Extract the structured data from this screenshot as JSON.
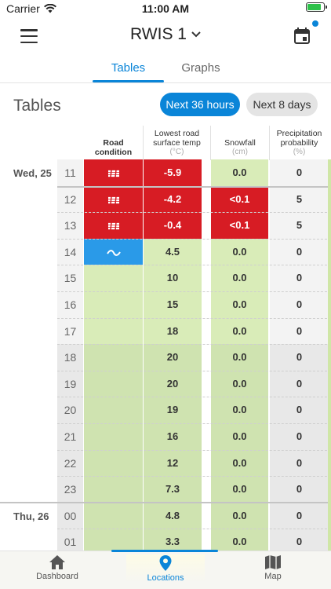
{
  "status_bar": {
    "carrier": "Carrier",
    "time": "11:00 AM"
  },
  "header": {
    "station": "RWIS 1"
  },
  "tabs": [
    {
      "label": "Tables"
    },
    {
      "label": "Graphs"
    }
  ],
  "section": {
    "title": "Tables"
  },
  "range_chips": [
    {
      "label": "Next 36 hours"
    },
    {
      "label": "Next 8 days"
    }
  ],
  "columns": {
    "road": {
      "label": "Road condition"
    },
    "temp": {
      "label": "Lowest road surface temp",
      "unit": "(°C)"
    },
    "snow": {
      "label": "Snowfall",
      "unit": "(cm)"
    },
    "precip": {
      "label": "Precipitation probability",
      "unit": "(%)"
    }
  },
  "days": [
    {
      "label": "Wed, 25"
    },
    {
      "label": "Thu, 26"
    }
  ],
  "rows": [
    {
      "hour": "11",
      "road": "frost-icon",
      "temp": "-5.9",
      "snow": "0.0",
      "precip": "0"
    },
    {
      "hour": "12",
      "road": "frost-icon",
      "temp": "-4.2",
      "snow": "<0.1",
      "precip": "5"
    },
    {
      "hour": "13",
      "road": "frost-icon",
      "temp": "-0.4",
      "snow": "<0.1",
      "precip": "5"
    },
    {
      "hour": "14",
      "road": "wet-icon",
      "temp": "4.5",
      "snow": "0.0",
      "precip": "0"
    },
    {
      "hour": "15",
      "road": "",
      "temp": "10",
      "snow": "0.0",
      "precip": "0"
    },
    {
      "hour": "16",
      "road": "",
      "temp": "15",
      "snow": "0.0",
      "precip": "0"
    },
    {
      "hour": "17",
      "road": "",
      "temp": "18",
      "snow": "0.0",
      "precip": "0"
    },
    {
      "hour": "18",
      "road": "",
      "temp": "20",
      "snow": "0.0",
      "precip": "0"
    },
    {
      "hour": "19",
      "road": "",
      "temp": "20",
      "snow": "0.0",
      "precip": "0"
    },
    {
      "hour": "20",
      "road": "",
      "temp": "19",
      "snow": "0.0",
      "precip": "0"
    },
    {
      "hour": "21",
      "road": "",
      "temp": "16",
      "snow": "0.0",
      "precip": "0"
    },
    {
      "hour": "22",
      "road": "",
      "temp": "12",
      "snow": "0.0",
      "precip": "0"
    },
    {
      "hour": "23",
      "road": "",
      "temp": "7.3",
      "snow": "0.0",
      "precip": "0"
    },
    {
      "hour": "00",
      "road": "",
      "temp": "4.8",
      "snow": "0.0",
      "precip": "0"
    },
    {
      "hour": "01",
      "road": "",
      "temp": "3.3",
      "snow": "0.0",
      "precip": "0"
    }
  ],
  "bottom_nav": [
    {
      "label": "Dashboard"
    },
    {
      "label": "Locations"
    },
    {
      "label": "Map"
    }
  ],
  "colors": {
    "accent": "#0a85d8",
    "alert_red": "#d71c24",
    "wet_blue": "#2a9ae8",
    "ok_green_light": "#d9ecb8",
    "ok_green_dark": "#cfe3b0",
    "hour_bg_light": "#f3f3f3",
    "hour_bg_dark": "#e8e8e8"
  }
}
